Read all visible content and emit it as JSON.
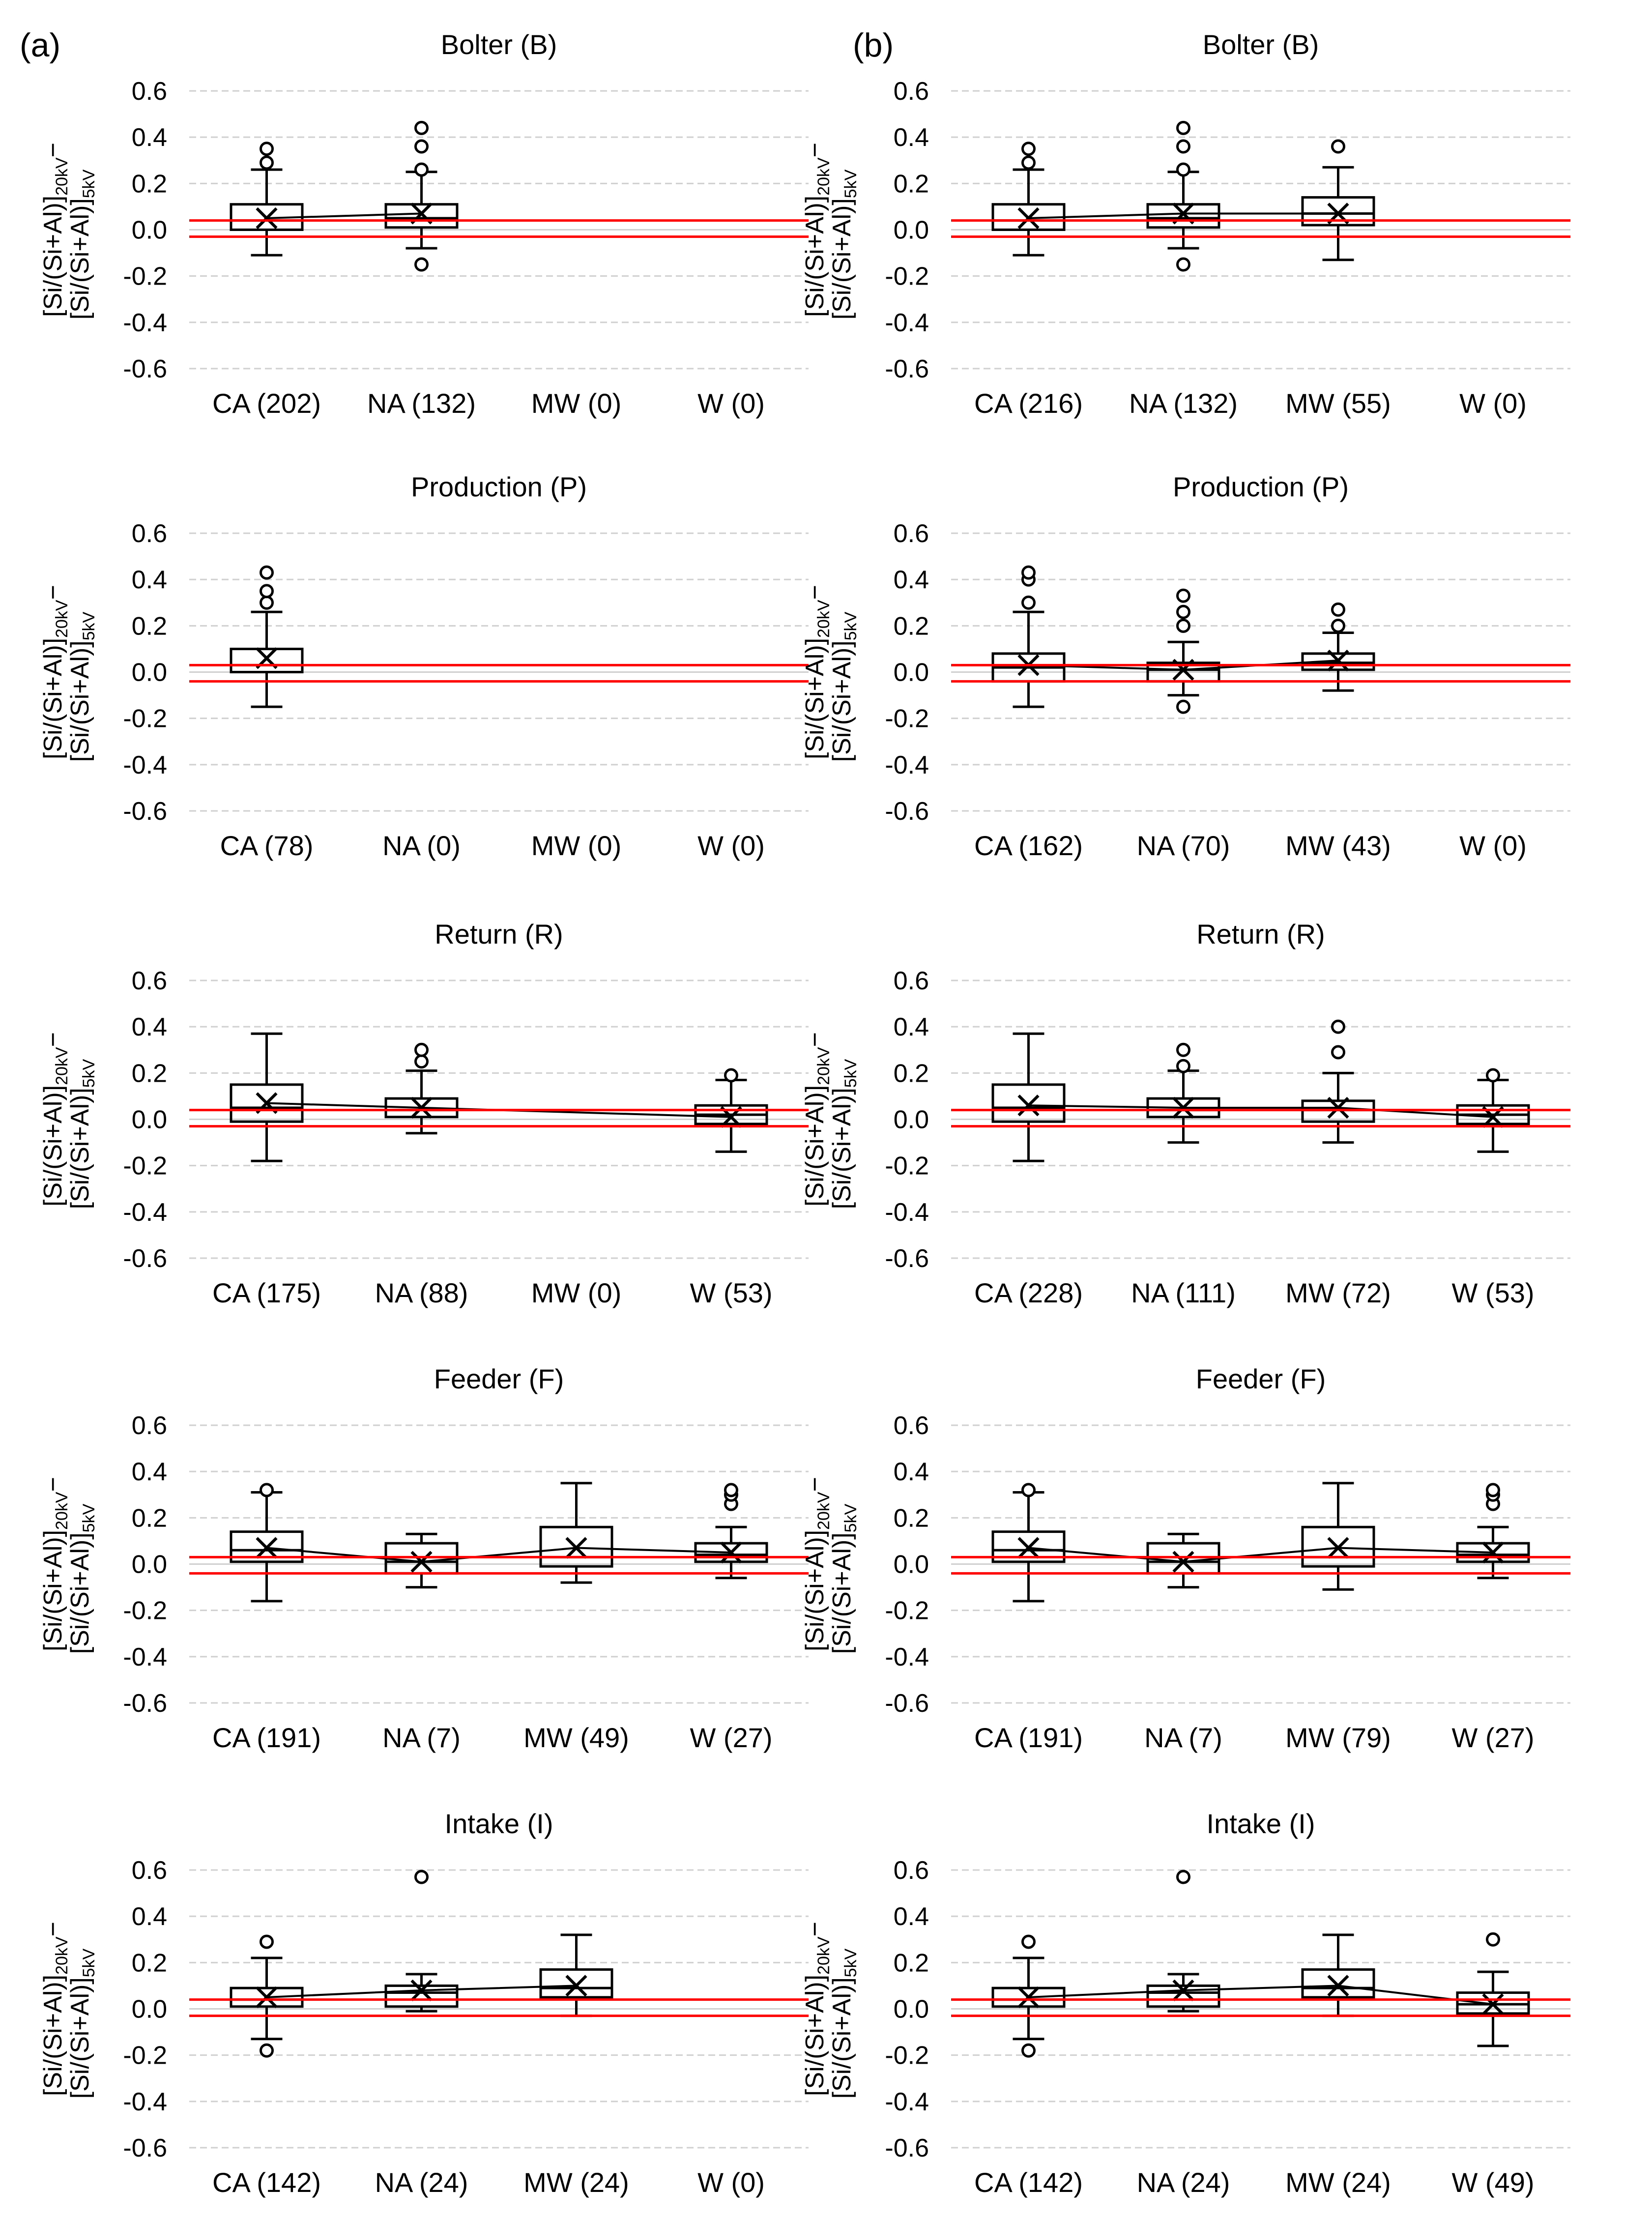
{
  "panel_labels": [
    "(a)",
    "(b)"
  ],
  "y_label": {
    "line1": "[Si/(Si+Al)]",
    "sub1": "20kV",
    "dash": "−",
    "line2": "[Si/(Si+Al)]",
    "sub2": "5kV"
  },
  "colors": {
    "grid": "#d0d0d0",
    "box": "#000000",
    "ref_line": "#ff0000",
    "background": "#ffffff"
  },
  "chart_data": [
    {
      "type": "box",
      "panel": "(a)",
      "title": "Bolter (B)",
      "ylim": [
        -0.6,
        0.6
      ],
      "yticks": [
        "-0.6",
        "-0.4",
        "-0.2",
        "0.0",
        "0.2",
        "0.4",
        "0.6"
      ],
      "reference_lines": [
        0.04,
        -0.03
      ],
      "categories": [
        "CA (202)",
        "NA (132)",
        "MW (0)",
        "W (0)"
      ],
      "boxes": [
        {
          "min": -0.11,
          "q1": 0.0,
          "median": 0.04,
          "q3": 0.11,
          "max": 0.26,
          "mean": 0.05,
          "outliers": [
            0.29,
            0.35
          ]
        },
        {
          "min": -0.08,
          "q1": 0.01,
          "median": 0.05,
          "q3": 0.11,
          "max": 0.25,
          "mean": 0.07,
          "outliers": [
            -0.15,
            0.26,
            0.36,
            0.44
          ]
        },
        null,
        null
      ]
    },
    {
      "type": "box",
      "panel": "(b)",
      "title": "Bolter (B)",
      "ylim": [
        -0.6,
        0.6
      ],
      "yticks": [
        "-0.6",
        "-0.4",
        "-0.2",
        "0.0",
        "0.2",
        "0.4",
        "0.6"
      ],
      "reference_lines": [
        0.04,
        -0.03
      ],
      "categories": [
        "CA (216)",
        "NA (132)",
        "MW (55)",
        "W (0)"
      ],
      "boxes": [
        {
          "min": -0.11,
          "q1": 0.0,
          "median": 0.04,
          "q3": 0.11,
          "max": 0.26,
          "mean": 0.05,
          "outliers": [
            0.29,
            0.35
          ]
        },
        {
          "min": -0.08,
          "q1": 0.01,
          "median": 0.05,
          "q3": 0.11,
          "max": 0.25,
          "mean": 0.07,
          "outliers": [
            -0.15,
            0.26,
            0.36,
            0.44
          ]
        },
        {
          "min": -0.13,
          "q1": 0.02,
          "median": 0.07,
          "q3": 0.14,
          "max": 0.27,
          "mean": 0.07,
          "outliers": [
            0.36
          ]
        },
        null
      ]
    },
    {
      "type": "box",
      "panel": "(a)",
      "title": "Production (P)",
      "ylim": [
        -0.6,
        0.6
      ],
      "yticks": [
        "-0.6",
        "-0.4",
        "-0.2",
        "0.0",
        "0.2",
        "0.4",
        "0.6"
      ],
      "reference_lines": [
        0.03,
        -0.04
      ],
      "categories": [
        "CA (78)",
        "NA (0)",
        "MW (0)",
        "W (0)"
      ],
      "boxes": [
        {
          "min": -0.15,
          "q1": 0.0,
          "median": 0.03,
          "q3": 0.1,
          "max": 0.26,
          "mean": 0.06,
          "outliers": [
            0.3,
            0.35,
            0.43
          ]
        },
        null,
        null,
        null
      ]
    },
    {
      "type": "box",
      "panel": "(b)",
      "title": "Production (P)",
      "ylim": [
        -0.6,
        0.6
      ],
      "yticks": [
        "-0.6",
        "-0.4",
        "-0.2",
        "0.0",
        "0.2",
        "0.4",
        "0.6"
      ],
      "reference_lines": [
        0.03,
        -0.04
      ],
      "categories": [
        "CA (162)",
        "NA (70)",
        "MW (43)",
        "W (0)"
      ],
      "boxes": [
        {
          "min": -0.15,
          "q1": -0.04,
          "median": 0.02,
          "q3": 0.08,
          "max": 0.26,
          "mean": 0.03,
          "outliers": [
            0.3,
            0.4,
            0.43
          ]
        },
        {
          "min": -0.1,
          "q1": -0.04,
          "median": 0.01,
          "q3": 0.04,
          "max": 0.13,
          "mean": 0.01,
          "outliers": [
            -0.15,
            0.2,
            0.26,
            0.33
          ]
        },
        {
          "min": -0.08,
          "q1": 0.01,
          "median": 0.04,
          "q3": 0.08,
          "max": 0.17,
          "mean": 0.05,
          "outliers": [
            0.2,
            0.27
          ]
        },
        null
      ]
    },
    {
      "type": "box",
      "panel": "(a)",
      "title": "Return (R)",
      "ylim": [
        -0.6,
        0.6
      ],
      "yticks": [
        "-0.6",
        "-0.4",
        "-0.2",
        "0.0",
        "0.2",
        "0.4",
        "0.6"
      ],
      "reference_lines": [
        0.04,
        -0.03
      ],
      "categories": [
        "CA (175)",
        "NA (88)",
        "MW (0)",
        "W (53)"
      ],
      "boxes": [
        {
          "min": -0.18,
          "q1": -0.01,
          "median": 0.05,
          "q3": 0.15,
          "max": 0.37,
          "mean": 0.07,
          "outliers": []
        },
        {
          "min": -0.06,
          "q1": 0.01,
          "median": 0.04,
          "q3": 0.09,
          "max": 0.21,
          "mean": 0.05,
          "outliers": [
            0.25,
            0.3
          ]
        },
        null,
        {
          "min": -0.14,
          "q1": -0.02,
          "median": 0.02,
          "q3": 0.06,
          "max": 0.17,
          "mean": 0.01,
          "outliers": [
            0.19
          ]
        }
      ]
    },
    {
      "type": "box",
      "panel": "(b)",
      "title": "Return (R)",
      "ylim": [
        -0.6,
        0.6
      ],
      "yticks": [
        "-0.6",
        "-0.4",
        "-0.2",
        "0.0",
        "0.2",
        "0.4",
        "0.6"
      ],
      "reference_lines": [
        0.04,
        -0.03
      ],
      "categories": [
        "CA (228)",
        "NA (111)",
        "MW (72)",
        "W (53)"
      ],
      "boxes": [
        {
          "min": -0.18,
          "q1": -0.01,
          "median": 0.05,
          "q3": 0.15,
          "max": 0.37,
          "mean": 0.06,
          "outliers": []
        },
        {
          "min": -0.1,
          "q1": 0.01,
          "median": 0.04,
          "q3": 0.09,
          "max": 0.21,
          "mean": 0.05,
          "outliers": [
            0.23,
            0.3
          ]
        },
        {
          "min": -0.1,
          "q1": -0.01,
          "median": 0.04,
          "q3": 0.08,
          "max": 0.2,
          "mean": 0.05,
          "outliers": [
            0.29,
            0.4
          ]
        },
        {
          "min": -0.14,
          "q1": -0.02,
          "median": 0.02,
          "q3": 0.06,
          "max": 0.17,
          "mean": 0.01,
          "outliers": [
            0.19
          ]
        }
      ]
    },
    {
      "type": "box",
      "panel": "(a)",
      "title": "Feeder (F)",
      "ylim": [
        -0.6,
        0.6
      ],
      "yticks": [
        "-0.6",
        "-0.4",
        "-0.2",
        "0.0",
        "0.2",
        "0.4",
        "0.6"
      ],
      "reference_lines": [
        0.03,
        -0.04
      ],
      "categories": [
        "CA (191)",
        "NA (7)",
        "MW (49)",
        "W (27)"
      ],
      "boxes": [
        {
          "min": -0.16,
          "q1": 0.01,
          "median": 0.06,
          "q3": 0.14,
          "max": 0.31,
          "mean": 0.07,
          "outliers": [
            0.32
          ]
        },
        {
          "min": -0.1,
          "q1": -0.04,
          "median": 0.01,
          "q3": 0.09,
          "max": 0.13,
          "mean": 0.01,
          "outliers": []
        },
        {
          "min": -0.08,
          "q1": -0.01,
          "median": 0.03,
          "q3": 0.16,
          "max": 0.35,
          "mean": 0.07,
          "outliers": []
        },
        {
          "min": -0.06,
          "q1": 0.01,
          "median": 0.04,
          "q3": 0.09,
          "max": 0.16,
          "mean": 0.05,
          "outliers": [
            0.26,
            0.3,
            0.32
          ]
        }
      ]
    },
    {
      "type": "box",
      "panel": "(b)",
      "title": "Feeder (F)",
      "ylim": [
        -0.6,
        0.6
      ],
      "yticks": [
        "-0.6",
        "-0.4",
        "-0.2",
        "0.0",
        "0.2",
        "0.4",
        "0.6"
      ],
      "reference_lines": [
        0.03,
        -0.04
      ],
      "categories": [
        "CA (191)",
        "NA (7)",
        "MW (79)",
        "W (27)"
      ],
      "boxes": [
        {
          "min": -0.16,
          "q1": 0.01,
          "median": 0.06,
          "q3": 0.14,
          "max": 0.31,
          "mean": 0.07,
          "outliers": [
            0.32
          ]
        },
        {
          "min": -0.1,
          "q1": -0.04,
          "median": 0.01,
          "q3": 0.09,
          "max": 0.13,
          "mean": 0.01,
          "outliers": []
        },
        {
          "min": -0.11,
          "q1": -0.01,
          "median": 0.03,
          "q3": 0.16,
          "max": 0.35,
          "mean": 0.07,
          "outliers": []
        },
        {
          "min": -0.06,
          "q1": 0.01,
          "median": 0.04,
          "q3": 0.09,
          "max": 0.16,
          "mean": 0.05,
          "outliers": [
            0.26,
            0.3,
            0.32
          ]
        }
      ]
    },
    {
      "type": "box",
      "panel": "(a)",
      "title": "Intake (I)",
      "ylim": [
        -0.6,
        0.6
      ],
      "yticks": [
        "-0.6",
        "-0.4",
        "-0.2",
        "0.0",
        "0.2",
        "0.4",
        "0.6"
      ],
      "reference_lines": [
        0.04,
        -0.03
      ],
      "categories": [
        "CA (142)",
        "NA (24)",
        "MW (24)",
        "W (0)"
      ],
      "boxes": [
        {
          "min": -0.13,
          "q1": 0.01,
          "median": 0.04,
          "q3": 0.09,
          "max": 0.22,
          "mean": 0.05,
          "outliers": [
            -0.18,
            0.29
          ]
        },
        {
          "min": -0.01,
          "q1": 0.01,
          "median": 0.07,
          "q3": 0.1,
          "max": 0.15,
          "mean": 0.08,
          "outliers": [
            0.57
          ]
        },
        {
          "min": -0.03,
          "q1": 0.05,
          "median": 0.09,
          "q3": 0.17,
          "max": 0.32,
          "mean": 0.1,
          "outliers": []
        },
        null
      ]
    },
    {
      "type": "box",
      "panel": "(b)",
      "title": "Intake (I)",
      "ylim": [
        -0.6,
        0.6
      ],
      "yticks": [
        "-0.6",
        "-0.4",
        "-0.2",
        "0.0",
        "0.2",
        "0.4",
        "0.6"
      ],
      "reference_lines": [
        0.04,
        -0.03
      ],
      "categories": [
        "CA (142)",
        "NA (24)",
        "MW (24)",
        "W (49)"
      ],
      "boxes": [
        {
          "min": -0.13,
          "q1": 0.01,
          "median": 0.04,
          "q3": 0.09,
          "max": 0.22,
          "mean": 0.05,
          "outliers": [
            -0.18,
            0.29
          ]
        },
        {
          "min": -0.01,
          "q1": 0.01,
          "median": 0.07,
          "q3": 0.1,
          "max": 0.15,
          "mean": 0.08,
          "outliers": [
            0.57
          ]
        },
        {
          "min": -0.03,
          "q1": 0.05,
          "median": 0.09,
          "q3": 0.17,
          "max": 0.32,
          "mean": 0.1,
          "outliers": []
        },
        {
          "min": -0.16,
          "q1": -0.02,
          "median": 0.02,
          "q3": 0.07,
          "max": 0.16,
          "mean": 0.02,
          "outliers": [
            0.3
          ]
        }
      ]
    }
  ]
}
